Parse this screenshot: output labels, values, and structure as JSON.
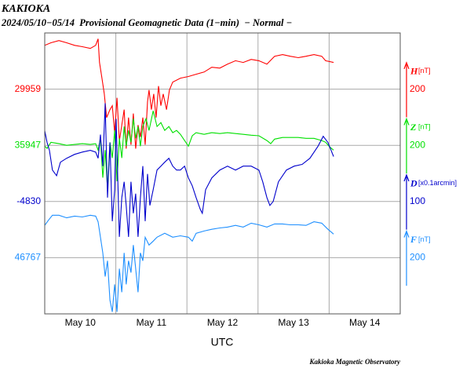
{
  "chart_data": {
    "type": "line",
    "title": "KAKIOKA",
    "subtitle": "2024/05/10−05/14  Provisional Geomagnetic Data (1−min)  − Normal −",
    "xlabel": "UTC",
    "source": "Kakioka Magnetic Observatory",
    "categories": [
      "May 10",
      "May 11",
      "May 12",
      "May 13",
      "May 14"
    ],
    "xlim": [
      0,
      120
    ],
    "xticks": [
      0,
      24,
      48,
      72,
      96,
      120
    ],
    "grid": true,
    "series": [
      {
        "name": "H",
        "unit": "[nT]",
        "color": "#ff0000",
        "base": 29959,
        "scale": 200,
        "x": [
          0,
          2.1,
          4.8,
          7.4,
          10.1,
          12.7,
          15.4,
          17.2,
          18.0,
          18.5,
          19.3,
          20.1,
          20.9,
          22.0,
          22.8,
          23.6,
          24.4,
          25.2,
          26.0,
          26.8,
          27.5,
          28.3,
          29.1,
          29.9,
          30.7,
          31.5,
          32.3,
          33.1,
          33.9,
          34.7,
          35.2,
          36.0,
          36.8,
          37.6,
          38.4,
          39.2,
          40.0,
          41.1,
          42.1,
          43.2,
          45.8,
          48.5,
          51.1,
          53.8,
          56.4,
          59.1,
          61.7,
          64.4,
          67.0,
          69.7,
          72.3,
          75.0,
          77.6,
          80.3,
          82.9,
          85.6,
          88.2,
          90.9,
          93.5,
          94.8,
          97.5
        ],
        "values": [
          30115,
          30124,
          30132,
          30124,
          30115,
          30110,
          30104,
          30115,
          30138,
          30054,
          29998,
          29942,
          29858,
          29886,
          29900,
          29803,
          29928,
          29775,
          29831,
          29886,
          29747,
          29858,
          29761,
          29872,
          29747,
          29831,
          29789,
          29858,
          29761,
          29914,
          29956,
          29886,
          29942,
          29858,
          29970,
          29900,
          29942,
          29886,
          29956,
          29984,
          29998,
          30004,
          30012,
          30020,
          30037,
          30034,
          30048,
          30060,
          30054,
          30065,
          30060,
          30048,
          30076,
          30082,
          30076,
          30071,
          30076,
          30082,
          30076,
          30060,
          30054
        ]
      },
      {
        "name": "Z",
        "unit": "[nT]",
        "color": "#00e000",
        "base": 35947,
        "scale": 200,
        "x": [
          0,
          0.8,
          2.1,
          4.8,
          7.4,
          10.1,
          12.7,
          15.4,
          17.2,
          18.0,
          18.8,
          19.6,
          20.4,
          21.2,
          22.0,
          22.8,
          23.6,
          24.4,
          25.2,
          26.0,
          26.8,
          27.5,
          28.3,
          29.1,
          29.9,
          30.7,
          31.5,
          32.3,
          33.1,
          34.2,
          35.2,
          36.6,
          37.9,
          39.2,
          40.5,
          41.9,
          43.2,
          44.5,
          45.8,
          47.2,
          48.5,
          49.8,
          51.1,
          53.8,
          56.4,
          59.1,
          61.7,
          64.4,
          67.0,
          69.7,
          72.3,
          75.0,
          76.3,
          77.6,
          80.3,
          82.9,
          85.6,
          88.2,
          90.9,
          93.5,
          94.8,
          96.2,
          97.5
        ],
        "values": [
          35944,
          35936,
          35958,
          35953,
          35947,
          35950,
          35953,
          35950,
          35953,
          35930,
          35972,
          35832,
          35930,
          35791,
          35958,
          35902,
          36000,
          35819,
          35972,
          35902,
          36014,
          35944,
          36000,
          35958,
          36042,
          35972,
          36014,
          35944,
          36014,
          36042,
          36000,
          36070,
          36014,
          36028,
          36000,
          36014,
          35992,
          36000,
          35986,
          35964,
          35944,
          35981,
          35992,
          35986,
          35992,
          35989,
          35992,
          35989,
          35986,
          35983,
          35981,
          35964,
          35953,
          35969,
          35975,
          35975,
          35975,
          35972,
          35972,
          35964,
          35958,
          35941,
          35930
        ]
      },
      {
        "name": "D",
        "unit": "[x0.1arcmin]",
        "color": "#0000cc",
        "base": -4830,
        "scale": 100,
        "x": [
          0,
          0.8,
          1.6,
          2.6,
          4.0,
          5.3,
          7.4,
          10.1,
          12.7,
          15.4,
          17.2,
          18.0,
          18.8,
          19.6,
          20.4,
          21.2,
          22.0,
          22.8,
          23.6,
          24.1,
          24.6,
          25.2,
          26.0,
          26.8,
          27.5,
          28.3,
          29.1,
          29.9,
          30.7,
          31.5,
          32.3,
          33.1,
          33.9,
          34.7,
          35.5,
          36.6,
          37.9,
          39.2,
          40.5,
          41.9,
          43.2,
          44.5,
          45.8,
          47.2,
          48.5,
          49.8,
          51.1,
          52.5,
          53.2,
          54.3,
          56.4,
          59.1,
          61.7,
          64.4,
          67.0,
          69.7,
          72.3,
          73.6,
          75.0,
          76.0,
          77.1,
          78.9,
          81.6,
          84.2,
          86.9,
          89.5,
          92.2,
          94.0,
          95.6,
          97.5
        ],
        "values": [
          -4704,
          -4725,
          -4739,
          -4774,
          -4784,
          -4760,
          -4753,
          -4746,
          -4742,
          -4739,
          -4742,
          -4753,
          -4711,
          -4767,
          -4655,
          -4823,
          -4725,
          -4865,
          -4809,
          -4683,
          -4781,
          -4893,
          -4823,
          -4795,
          -4837,
          -4893,
          -4795,
          -4851,
          -4816,
          -4893,
          -4823,
          -4767,
          -4865,
          -4781,
          -4837,
          -4809,
          -4774,
          -4767,
          -4760,
          -4753,
          -4767,
          -4774,
          -4774,
          -4767,
          -4788,
          -4802,
          -4823,
          -4844,
          -4851,
          -4809,
          -4788,
          -4774,
          -4767,
          -4774,
          -4767,
          -4767,
          -4774,
          -4795,
          -4823,
          -4837,
          -4830,
          -4795,
          -4774,
          -4767,
          -4764,
          -4753,
          -4732,
          -4714,
          -4725,
          -4750
        ]
      },
      {
        "name": "F",
        "unit": "[nT]",
        "color": "#1e8fff",
        "base": 46767,
        "scale": 200,
        "x": [
          0,
          1.3,
          2.6,
          4.8,
          7.4,
          10.1,
          12.7,
          15.4,
          17.2,
          18.0,
          18.8,
          19.6,
          20.4,
          21.2,
          22.0,
          22.8,
          23.6,
          24.4,
          25.2,
          26.0,
          26.8,
          27.5,
          28.3,
          29.1,
          29.9,
          30.7,
          31.5,
          32.3,
          33.1,
          33.9,
          35.2,
          36.6,
          37.9,
          40.5,
          43.2,
          45.8,
          48.5,
          49.8,
          51.1,
          53.8,
          56.4,
          59.1,
          61.7,
          64.4,
          67.0,
          69.7,
          72.3,
          75.0,
          77.6,
          80.3,
          82.9,
          85.6,
          88.2,
          90.9,
          93.5,
          95.6,
          97.5
        ],
        "values": [
          46882,
          46901,
          46918,
          46918,
          46909,
          46915,
          46912,
          46918,
          46915,
          46895,
          46840,
          46784,
          46700,
          46756,
          46616,
          46574,
          46672,
          46574,
          46728,
          46644,
          46784,
          46672,
          46756,
          46714,
          46812,
          46728,
          46644,
          46784,
          46756,
          46840,
          46812,
          46826,
          46840,
          46854,
          46840,
          46845,
          46840,
          46826,
          46854,
          46862,
          46868,
          46873,
          46876,
          46882,
          46876,
          46890,
          46884,
          46876,
          46887,
          46887,
          46884,
          46884,
          46882,
          46895,
          46890,
          46868,
          46851
        ]
      }
    ]
  }
}
